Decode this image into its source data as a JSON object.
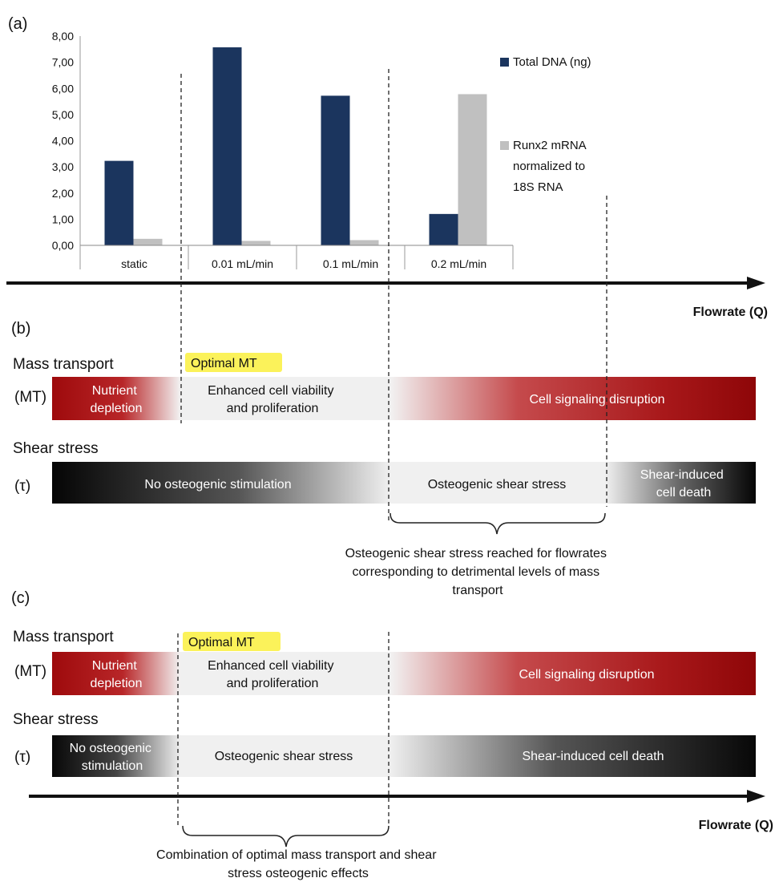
{
  "panels": {
    "a": "(a)",
    "b": "(b)",
    "c": "(c)"
  },
  "chart_data": {
    "type": "bar",
    "categories": [
      "static",
      "0.01 mL/min",
      "0.1 mL/min",
      "0.2 mL/min"
    ],
    "series": [
      {
        "name": "Total DNA (ng)",
        "color": "#1b355e",
        "values": [
          3.23,
          7.57,
          5.72,
          1.2
        ]
      },
      {
        "name": "Runx2 mRNA normalized to 18S RNA",
        "color": "#c0c0c0",
        "values": [
          0.25,
          0.17,
          0.2,
          5.78
        ]
      }
    ],
    "yticks": [
      "0,00",
      "1,00",
      "2,00",
      "3,00",
      "4,00",
      "5,00",
      "6,00",
      "7,00",
      "8,00"
    ],
    "ylim": [
      0,
      8
    ],
    "legend_position": "right",
    "legend": [
      {
        "lines": [
          "Total DNA (ng)"
        ],
        "color": "#1b355e"
      },
      {
        "lines": [
          "Runx2 mRNA",
          "normalized to",
          "18S RNA"
        ],
        "color": "#c0c0c0"
      }
    ]
  },
  "axis_label": "Flowrate (Q)",
  "b": {
    "mt_title": "Mass transport",
    "mt_abbr": "(MT)",
    "optimal": "Optimal MT",
    "mt_bands": {
      "nutrient": [
        "Nutrient",
        "depletion"
      ],
      "enhanced": [
        "Enhanced cell viability",
        "and proliferation"
      ],
      "disruption": "Cell signaling disruption"
    },
    "ss_title": "Shear stress",
    "ss_abbr": "(τ)",
    "ss_bands": {
      "no_osteo": "No osteogenic stimulation",
      "osteo": "Osteogenic shear stress",
      "death": [
        "Shear-induced",
        "cell death"
      ]
    },
    "note": [
      "Osteogenic shear stress reached for flowrates",
      "corresponding to detrimental levels of mass",
      "transport"
    ]
  },
  "c": {
    "mt_title": "Mass transport",
    "mt_abbr": "(MT)",
    "optimal": "Optimal MT",
    "mt_bands": {
      "nutrient": [
        "Nutrient",
        "depletion"
      ],
      "enhanced": [
        "Enhanced cell viability",
        "and proliferation"
      ],
      "disruption": "Cell signaling disruption"
    },
    "ss_title": "Shear stress",
    "ss_abbr": "(τ)",
    "ss_bands": {
      "no_osteo": [
        "No osteogenic",
        "stimulation"
      ],
      "osteo": "Osteogenic shear stress",
      "death": "Shear-induced cell death"
    },
    "note": [
      "Combination of optimal mass transport and shear",
      "stress osteogenic effects"
    ]
  }
}
